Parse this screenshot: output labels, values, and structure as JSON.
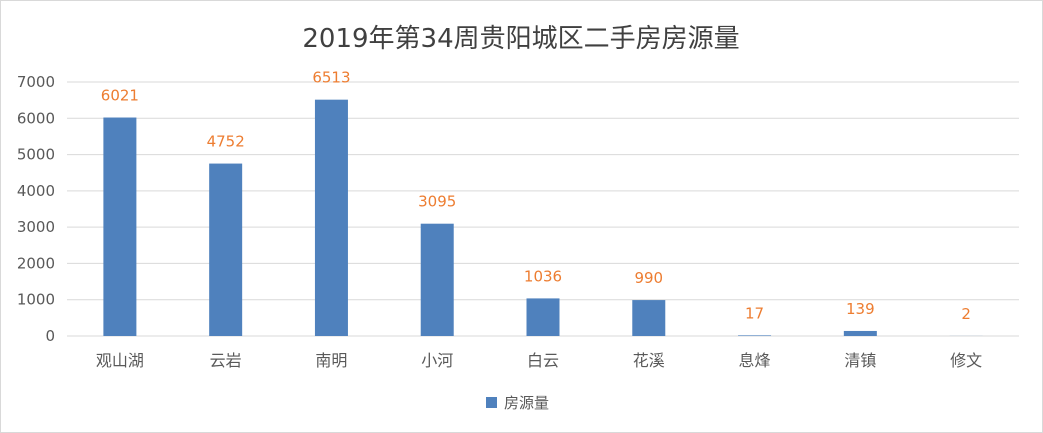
{
  "chart_data": {
    "type": "bar",
    "title": "2019年第34周贵阳城区二手房房源量",
    "categories": [
      "观山湖",
      "云岩",
      "南明",
      "小河",
      "白云",
      "花溪",
      "息烽",
      "清镇",
      "修文"
    ],
    "series": [
      {
        "name": "房源量",
        "values": [
          6021,
          4752,
          6513,
          3095,
          1036,
          990,
          17,
          139,
          2
        ]
      }
    ],
    "ylim": [
      0,
      7000
    ],
    "yticks": [
      0,
      1000,
      2000,
      3000,
      4000,
      5000,
      6000,
      7000
    ],
    "grid": true,
    "legend_position": "bottom",
    "colors": {
      "bar": "#4f81bd",
      "data_label": "#ed7d31",
      "grid": "#d9d9d9",
      "title": "#404040",
      "text": "#595959"
    }
  }
}
